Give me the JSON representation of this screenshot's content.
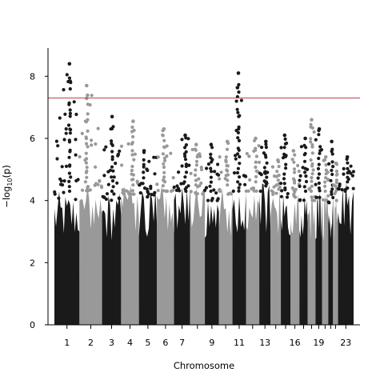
{
  "chart_data": {
    "type": "scatter",
    "subtype": "manhattan",
    "title": "",
    "xlabel": "Chromosome",
    "ylabel": "−log10(p)",
    "ylabel_parts": {
      "prefix": "−log",
      "sub": "10",
      "suffix": "(p)"
    },
    "ylim": [
      0,
      8.6
    ],
    "y_ticks": [
      0,
      2,
      4,
      6,
      8
    ],
    "grid": false,
    "legend": "none",
    "threshold": {
      "value": 7.3,
      "color": "#c0404f"
    },
    "colors": {
      "odd_chromosome": "#1a1a1a",
      "even_chromosome": "#999999"
    },
    "chromosomes": [
      {
        "chr": "1",
        "label": "1",
        "body_max": 4.3,
        "peak": 8.4
      },
      {
        "chr": "2",
        "label": "2",
        "body_max": 4.6,
        "peak": 7.7
      },
      {
        "chr": "3",
        "label": "3",
        "body_max": 4.3,
        "peak": 6.7
      },
      {
        "chr": "4",
        "label": "4",
        "body_max": 4.5,
        "peak": 6.55
      },
      {
        "chr": "5",
        "label": "5",
        "body_max": 4.4,
        "peak": 5.6
      },
      {
        "chr": "6",
        "label": "6",
        "body_max": 4.6,
        "peak": 6.3
      },
      {
        "chr": "7",
        "label": "7",
        "body_max": 4.6,
        "peak": 6.1
      },
      {
        "chr": "8",
        "label": "",
        "body_max": 4.5,
        "peak": 5.8
      },
      {
        "chr": "9",
        "label": "9",
        "body_max": 4.3,
        "peak": 5.8
      },
      {
        "chr": "10",
        "label": "",
        "body_max": 4.5,
        "peak": 5.9
      },
      {
        "chr": "11",
        "label": "11",
        "body_max": 4.6,
        "peak": 8.1
      },
      {
        "chr": "12",
        "label": "",
        "body_max": 4.6,
        "peak": 6.0
      },
      {
        "chr": "13",
        "label": "13",
        "body_max": 4.6,
        "peak": 5.9
      },
      {
        "chr": "14",
        "label": "",
        "body_max": 4.5,
        "peak": 5.3
      },
      {
        "chr": "15",
        "label": "",
        "body_max": 4.4,
        "peak": 6.1
      },
      {
        "chr": "16",
        "label": "16",
        "body_max": 4.4,
        "peak": 5.6
      },
      {
        "chr": "17",
        "label": "",
        "body_max": 4.3,
        "peak": 6.0
      },
      {
        "chr": "18",
        "label": "",
        "body_max": 4.3,
        "peak": 6.6
      },
      {
        "chr": "19",
        "label": "19",
        "body_max": 4.4,
        "peak": 6.3
      },
      {
        "chr": "20",
        "label": "",
        "body_max": 4.3,
        "peak": 5.4
      },
      {
        "chr": "21",
        "label": "",
        "body_max": 4.2,
        "peak": 5.9
      },
      {
        "chr": "22",
        "label": "",
        "body_max": 4.3,
        "peak": 5.2
      },
      {
        "chr": "23",
        "label": "23",
        "body_max": 4.6,
        "peak": 5.4
      }
    ]
  }
}
